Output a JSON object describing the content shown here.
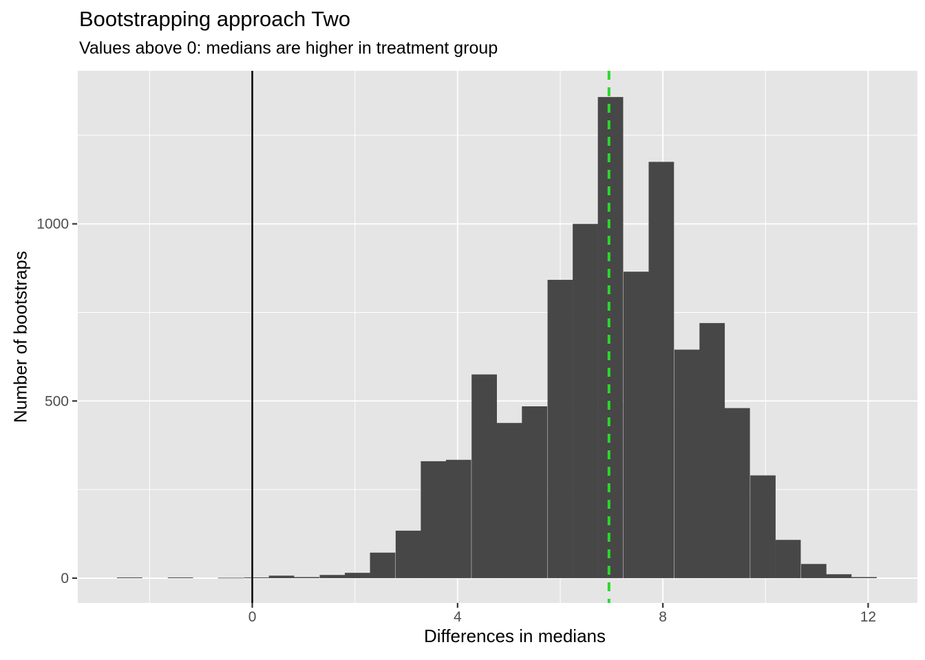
{
  "title": "Bootstrapping approach Two",
  "subtitle": "Values above 0: medians are higher in treatment group",
  "chart_data": {
    "type": "histogram",
    "title": "Bootstrapping approach Two",
    "subtitle": "Values above 0: medians are higher in treatment group",
    "xlabel": "Differences in medians",
    "ylabel": "Number of bootstraps",
    "legend": "none",
    "grid": true,
    "bin_width": 0.493,
    "bin_centers": [
      -2.39,
      -1.9,
      -1.4,
      -0.91,
      -0.42,
      0.08,
      0.57,
      1.06,
      1.56,
      2.05,
      2.54,
      3.04,
      3.53,
      4.02,
      4.52,
      5.01,
      5.5,
      6.0,
      6.49,
      6.98,
      7.48,
      7.97,
      8.47,
      8.96,
      9.45,
      9.95,
      10.44,
      10.94,
      11.43,
      11.92
    ],
    "counts": [
      2,
      0,
      2,
      0,
      1,
      2,
      7,
      3,
      9,
      15,
      72,
      134,
      330,
      334,
      575,
      438,
      485,
      842,
      1000,
      1358,
      865,
      1175,
      645,
      720,
      480,
      290,
      108,
      40,
      11,
      3
    ],
    "xlim": [
      -3.4,
      12.96
    ],
    "ylim": [
      -70,
      1432
    ],
    "x_ticks": {
      "values": [
        0,
        4,
        8,
        12
      ],
      "labels": [
        "0",
        "4",
        "8",
        "12"
      ]
    },
    "x_minor": [
      -2,
      2,
      6,
      10
    ],
    "y_ticks": {
      "values": [
        0,
        500,
        1000
      ],
      "labels": [
        "0",
        "500",
        "1000"
      ]
    },
    "y_minor": [
      250,
      750,
      1250
    ],
    "vlines": [
      {
        "x": 0,
        "color": "#000000",
        "style": "solid",
        "width": 2.5,
        "name": "zero-reference-line"
      },
      {
        "x": 6.95,
        "color": "#2BD92B",
        "style": "dashed",
        "width": 4,
        "name": "observed-difference-line"
      }
    ],
    "colors": {
      "bar": "#474747",
      "panel": "#E5E5E5",
      "grid_major": "#FFFFFF",
      "grid_minor": "#FFFFFF",
      "tick_label": "#4D4D4D",
      "tick_mark": "#333333",
      "text": "#000000"
    }
  }
}
